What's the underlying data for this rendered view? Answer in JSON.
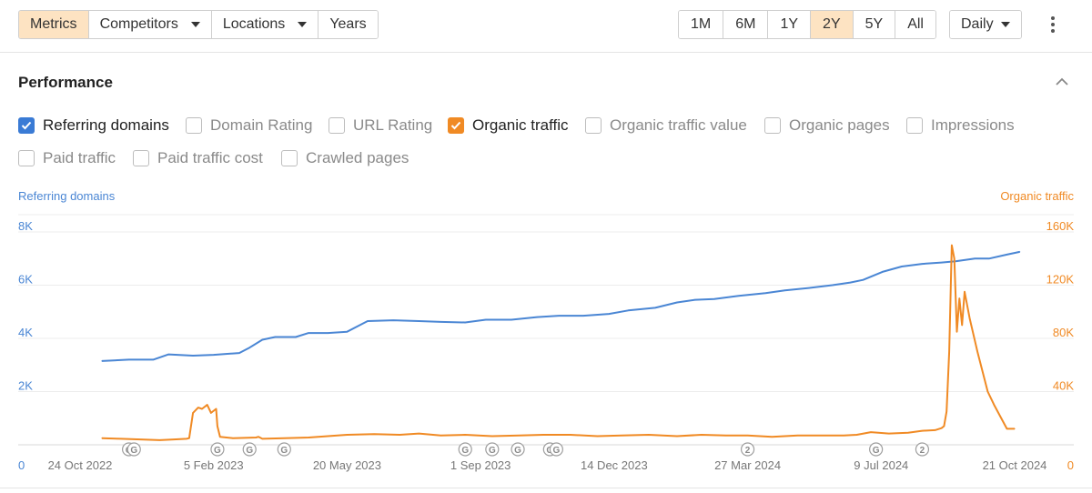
{
  "toolbar": {
    "left_tabs": [
      {
        "label": "Metrics",
        "active": true,
        "dropdown": false
      },
      {
        "label": "Competitors",
        "active": false,
        "dropdown": true
      },
      {
        "label": "Locations",
        "active": false,
        "dropdown": true
      },
      {
        "label": "Years",
        "active": false,
        "dropdown": false
      }
    ],
    "ranges": [
      {
        "label": "1M",
        "active": false
      },
      {
        "label": "6M",
        "active": false
      },
      {
        "label": "1Y",
        "active": false
      },
      {
        "label": "2Y",
        "active": true
      },
      {
        "label": "5Y",
        "active": false
      },
      {
        "label": "All",
        "active": false
      }
    ],
    "interval": "Daily"
  },
  "panel": {
    "title": "Performance"
  },
  "metrics": [
    {
      "label": "Referring domains",
      "checked": true,
      "color": "#3a7bd5"
    },
    {
      "label": "Domain Rating",
      "checked": false
    },
    {
      "label": "URL Rating",
      "checked": false
    },
    {
      "label": "Organic traffic",
      "checked": true,
      "color": "#f08a24"
    },
    {
      "label": "Organic traffic value",
      "checked": false
    },
    {
      "label": "Organic pages",
      "checked": false
    },
    {
      "label": "Impressions",
      "checked": false
    },
    {
      "label": "Paid traffic",
      "checked": false
    },
    {
      "label": "Paid traffic cost",
      "checked": false
    },
    {
      "label": "Crawled pages",
      "checked": false
    }
  ],
  "colors": {
    "accent": "#fde3c2",
    "blue": "#4a86d4",
    "orange": "#f08a24",
    "marker": "#9e9e9e"
  },
  "chart_data": {
    "type": "line",
    "left_axis_title": "Referring domains",
    "right_axis_title": "Organic traffic",
    "left_ticks": [
      "0",
      "2K",
      "4K",
      "6K",
      "8K"
    ],
    "left_tick_values": [
      0,
      2000,
      4000,
      6000,
      8000
    ],
    "right_ticks": [
      "0",
      "40K",
      "80K",
      "120K",
      "160K"
    ],
    "right_tick_values": [
      0,
      40000,
      80000,
      120000,
      160000
    ],
    "left_ylim": [
      0,
      8000
    ],
    "right_ylim": [
      0,
      160000
    ],
    "x_tick_labels": [
      "24 Oct 2022",
      "5 Feb 2023",
      "20 May 2023",
      "1 Sep 2023",
      "14 Dec 2023",
      "27 Mar 2024",
      "9 Jul 2024",
      "21 Oct 2024"
    ],
    "x_tick_dates": [
      "2022-10-24",
      "2023-02-05",
      "2023-05-20",
      "2023-09-01",
      "2023-12-14",
      "2024-03-27",
      "2024-07-09",
      "2024-10-21"
    ],
    "grid": true,
    "series": [
      {
        "name": "Referring domains",
        "axis": "left",
        "x": [
          "2022-11-10",
          "2022-12-01",
          "2022-12-20",
          "2023-01-01",
          "2023-01-20",
          "2023-02-05",
          "2023-02-25",
          "2023-03-05",
          "2023-03-15",
          "2023-03-25",
          "2023-04-10",
          "2023-04-20",
          "2023-05-05",
          "2023-05-20",
          "2023-06-01",
          "2023-06-05",
          "2023-06-25",
          "2023-07-15",
          "2023-08-01",
          "2023-08-20",
          "2023-09-05",
          "2023-09-25",
          "2023-10-15",
          "2023-11-01",
          "2023-11-20",
          "2023-12-10",
          "2023-12-25",
          "2024-01-15",
          "2024-02-01",
          "2024-02-15",
          "2024-03-01",
          "2024-03-20",
          "2024-04-10",
          "2024-04-25",
          "2024-05-15",
          "2024-06-01",
          "2024-06-15",
          "2024-06-25",
          "2024-07-10",
          "2024-07-25",
          "2024-08-10",
          "2024-08-25",
          "2024-09-05",
          "2024-09-20",
          "2024-10-01",
          "2024-10-15",
          "2024-10-25"
        ],
        "values": [
          3150,
          3200,
          3200,
          3400,
          3350,
          3380,
          3450,
          3650,
          3950,
          4050,
          4050,
          4200,
          4200,
          4250,
          4550,
          4650,
          4680,
          4650,
          4620,
          4600,
          4700,
          4700,
          4800,
          4850,
          4850,
          4920,
          5050,
          5150,
          5350,
          5450,
          5480,
          5600,
          5700,
          5800,
          5900,
          6000,
          6100,
          6200,
          6500,
          6700,
          6800,
          6850,
          6900,
          7000,
          7000,
          7150,
          7250
        ]
      },
      {
        "name": "Organic traffic",
        "axis": "right",
        "x": [
          "2022-11-10",
          "2022-11-25",
          "2022-12-10",
          "2022-12-25",
          "2023-01-05",
          "2023-01-15",
          "2023-01-17",
          "2023-01-20",
          "2023-01-24",
          "2023-01-27",
          "2023-01-31",
          "2023-02-03",
          "2023-02-07",
          "2023-02-08",
          "2023-02-10",
          "2023-02-20",
          "2023-03-10",
          "2023-03-12",
          "2023-03-15",
          "2023-04-01",
          "2023-04-20",
          "2023-05-05",
          "2023-05-20",
          "2023-06-10",
          "2023-06-30",
          "2023-07-15",
          "2023-08-01",
          "2023-08-20",
          "2023-09-10",
          "2023-10-01",
          "2023-10-20",
          "2023-11-10",
          "2023-12-01",
          "2023-12-20",
          "2024-01-10",
          "2024-02-01",
          "2024-02-20",
          "2024-03-10",
          "2024-03-27",
          "2024-04-15",
          "2024-05-05",
          "2024-05-25",
          "2024-06-10",
          "2024-06-20",
          "2024-07-01",
          "2024-07-15",
          "2024-07-30",
          "2024-08-10",
          "2024-08-20",
          "2024-08-25",
          "2024-08-27",
          "2024-08-29",
          "2024-08-31",
          "2024-09-02",
          "2024-09-04",
          "2024-09-06",
          "2024-09-08",
          "2024-09-10",
          "2024-09-12",
          "2024-09-16",
          "2024-09-22",
          "2024-09-30",
          "2024-10-05",
          "2024-10-15",
          "2024-10-21"
        ],
        "values": [
          5000,
          4500,
          4000,
          3500,
          4000,
          4500,
          5000,
          24000,
          28000,
          27000,
          30000,
          24000,
          27000,
          14000,
          6000,
          5000,
          5500,
          6000,
          4500,
          5000,
          5500,
          6500,
          7500,
          8000,
          7500,
          8500,
          7000,
          7500,
          6500,
          7000,
          7500,
          7500,
          6500,
          7000,
          7500,
          6500,
          7500,
          7000,
          7000,
          6000,
          7000,
          7000,
          7000,
          7500,
          9500,
          8500,
          9000,
          10500,
          11000,
          12500,
          14000,
          25000,
          70000,
          150000,
          140000,
          85000,
          110000,
          90000,
          115000,
          95000,
          70000,
          40000,
          30000,
          12000,
          12000
        ]
      }
    ],
    "markers": [
      {
        "date": "2022-12-01",
        "label": "G"
      },
      {
        "date": "2022-12-05",
        "label": "G"
      },
      {
        "date": "2023-02-08",
        "label": "G"
      },
      {
        "date": "2023-03-05",
        "label": "G"
      },
      {
        "date": "2023-04-01",
        "label": "G"
      },
      {
        "date": "2023-08-20",
        "label": "G"
      },
      {
        "date": "2023-09-10",
        "label": "G"
      },
      {
        "date": "2023-09-30",
        "label": "G"
      },
      {
        "date": "2023-10-25",
        "label": "G"
      },
      {
        "date": "2023-10-30",
        "label": "G"
      },
      {
        "date": "2024-03-27",
        "label": "2"
      },
      {
        "date": "2024-07-05",
        "label": "G"
      },
      {
        "date": "2024-08-10",
        "label": "2"
      }
    ]
  }
}
